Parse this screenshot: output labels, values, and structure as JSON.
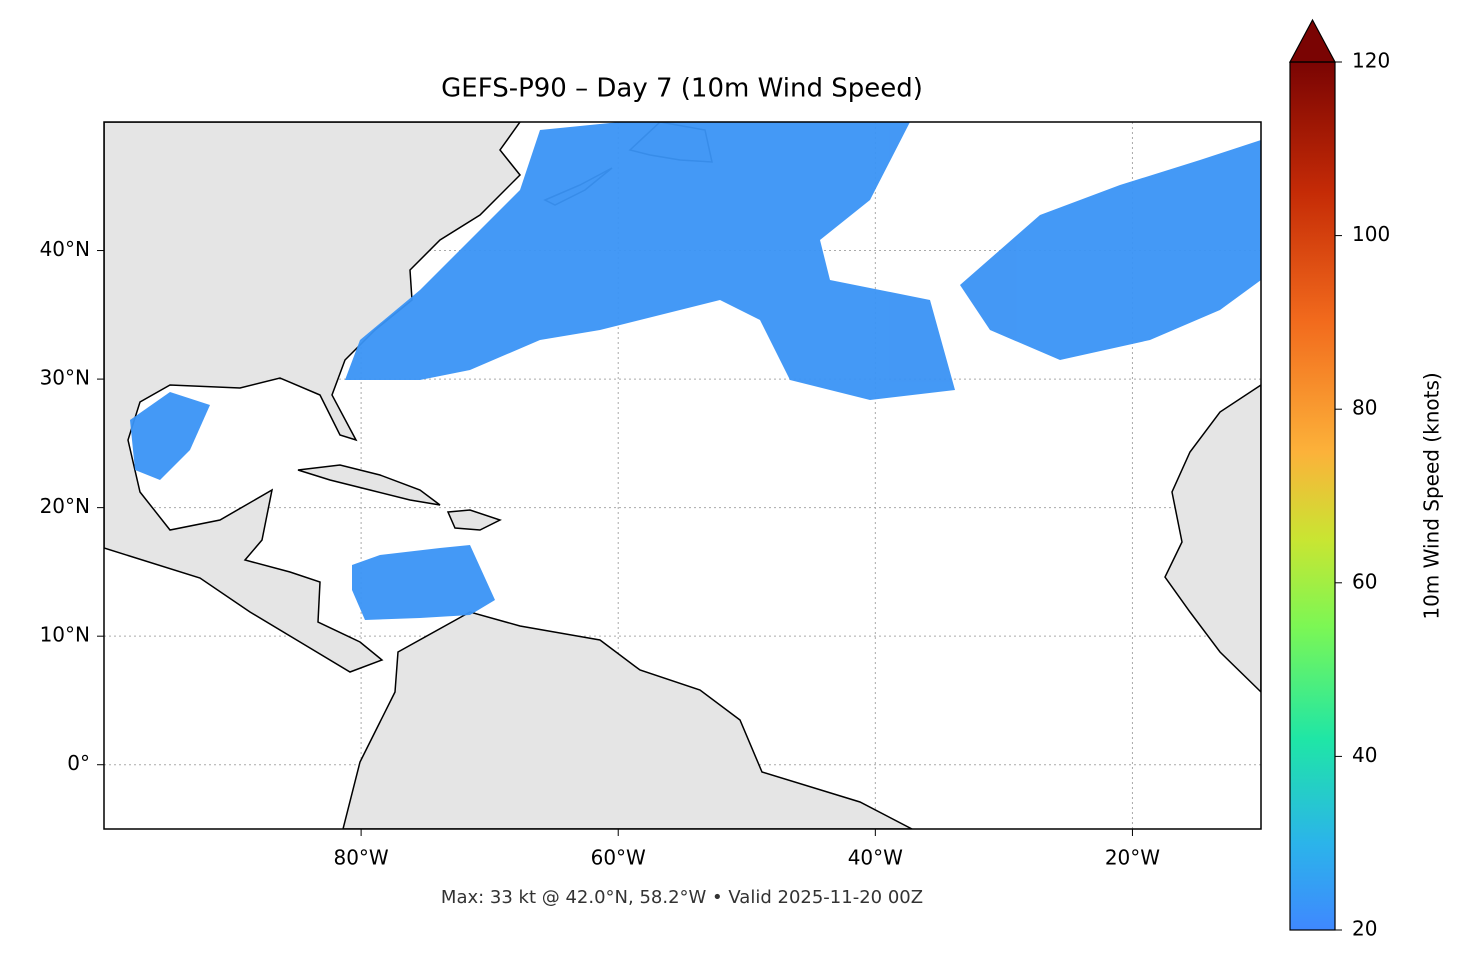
{
  "chart_data": {
    "type": "map",
    "title": "GEFS-P90 – Day 7 (10m Wind Speed)",
    "footnote": "Max: 33 kt @ 42.0°N, 58.2°W • Valid 2025-11-20 00Z",
    "xlim": [
      -100,
      -10
    ],
    "ylim": [
      -5,
      50
    ],
    "xticks": [
      {
        "value": -80,
        "label": "80°W"
      },
      {
        "value": -60,
        "label": "60°W"
      },
      {
        "value": -40,
        "label": "40°W"
      },
      {
        "value": -20,
        "label": "20°W"
      }
    ],
    "yticks": [
      {
        "value": 0,
        "label": "0°"
      },
      {
        "value": 10,
        "label": "10°N"
      },
      {
        "value": 20,
        "label": "20°N"
      },
      {
        "value": 30,
        "label": "30°N"
      },
      {
        "value": 40,
        "label": "40°N"
      }
    ],
    "grid": true,
    "colorbar": {
      "label": "10m Wind Speed (knots)",
      "lim": [
        20,
        120
      ],
      "ticks": [
        20,
        40,
        60,
        80,
        100,
        120
      ]
    }
  }
}
